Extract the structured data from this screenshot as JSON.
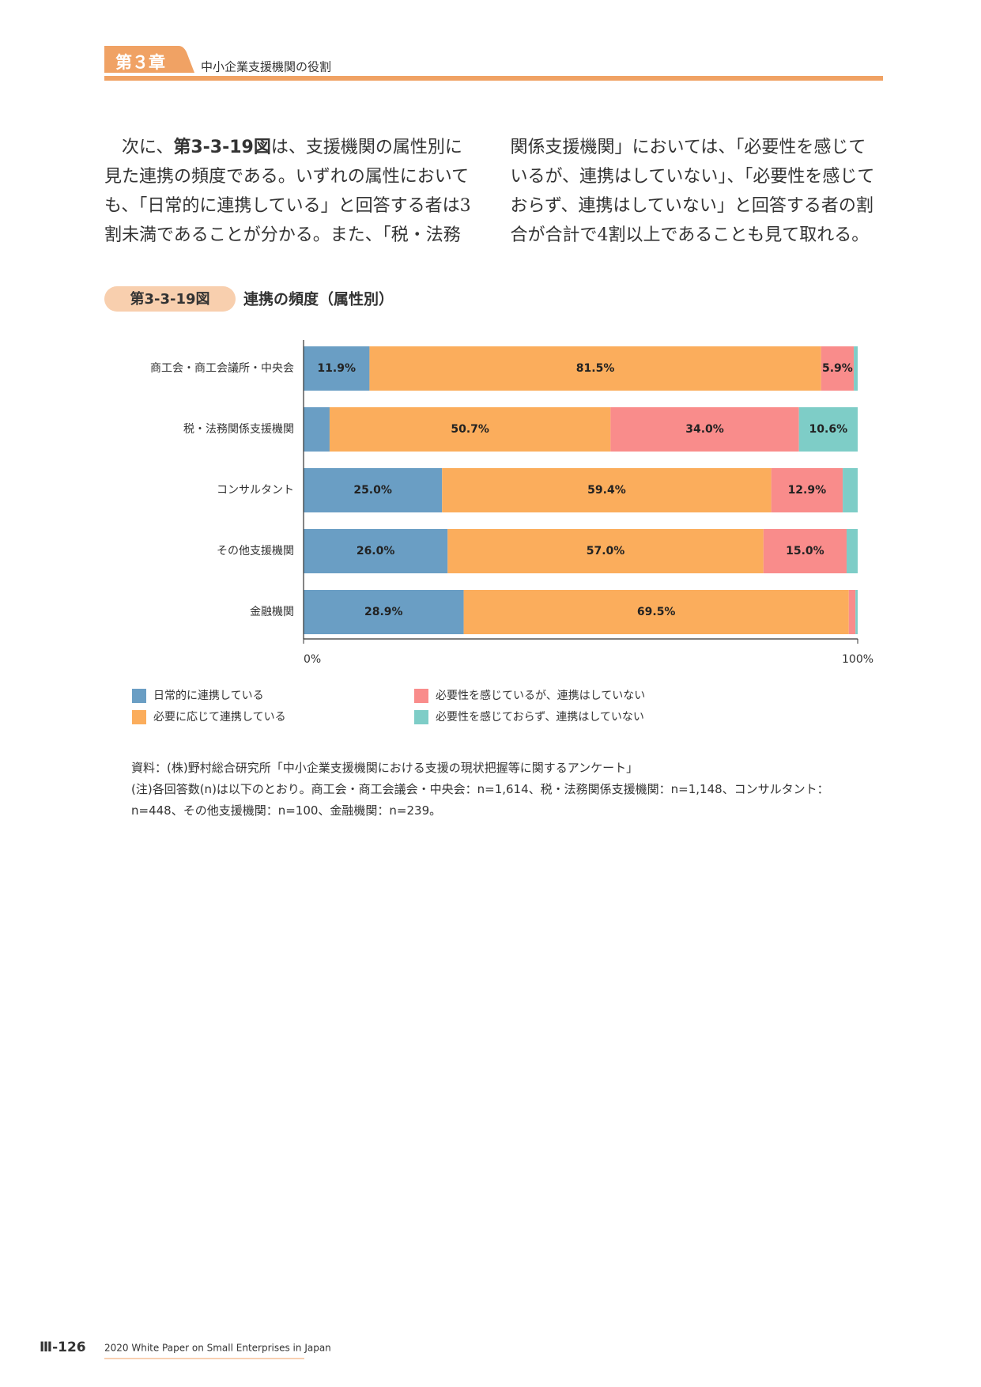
{
  "header": {
    "chapter": "第３章",
    "title": "中小企業支援機関の役割"
  },
  "body": {
    "paragraph": [
      "次に、",
      "第3-3-19図",
      "は、支援機関の属性別に見た連携の頻度である。いずれの属性においても、「日常的に連携している」と回答する者は3割未満であることが分かる。また、「税・法務関係支援機関」においては、「必要性を感じているが、連携はしていない」、「必要性を感じておらず、連携はしていない」と回答する者の割合が合計で4割以上であることも見て取れる。"
    ]
  },
  "figure": {
    "number": "第3-3-19図",
    "title": "連携の頻度（属性別）"
  },
  "chart_data": {
    "type": "stacked-bar-horizontal",
    "categories": [
      "商工会・商工会議所・中央会",
      "税・法務関係支援機関",
      "コンサルタント",
      "その他支援機関",
      "金融機関"
    ],
    "series": [
      {
        "name": "日常的に連携している",
        "color": "#6a9ec4",
        "values": [
          11.9,
          4.7,
          25.0,
          26.0,
          28.9
        ],
        "value_labels": [
          "11.9%",
          null,
          "25.0%",
          "26.0%",
          "28.9%"
        ]
      },
      {
        "name": "必要に応じて連携している",
        "color": "#fbad5c",
        "values": [
          81.5,
          50.7,
          59.4,
          57.0,
          69.5
        ],
        "value_labels": [
          "81.5%",
          "50.7%",
          "59.4%",
          "57.0%",
          "69.5%"
        ]
      },
      {
        "name": "必要性を感じているが、連携はしていない",
        "color": "#f98c8b",
        "values": [
          5.9,
          34.0,
          12.9,
          15.0,
          1.2
        ],
        "value_labels": [
          "5.9%",
          "34.0%",
          "12.9%",
          "15.0%",
          null
        ]
      },
      {
        "name": "必要性を感じておらず、連携はしていない",
        "color": "#7ecdc7",
        "values": [
          0.7,
          10.6,
          2.7,
          2.0,
          0.4
        ],
        "value_labels": [
          null,
          "10.6%",
          null,
          null,
          null
        ]
      }
    ],
    "xlim": [
      0,
      100
    ],
    "xticks": [
      {
        "value": 0,
        "label": "0%"
      },
      {
        "value": 100,
        "label": "100%"
      }
    ]
  },
  "notes": {
    "source": "資料：(株)野村総合研究所「中小企業支援機関における支援の現状把握等に関するアンケート」",
    "note": "(注)各回答数(n)は以下のとおり。商工会・商工会議会・中央会：n=1,614、税・法務関係支援機関：n=1,148、コンサルタント：n=448、その他支援機関：n=100、金融機関：n=239。"
  },
  "footer": {
    "page": "Ⅲ-126",
    "publication": "2020 White Paper on Small Enterprises in Japan"
  }
}
